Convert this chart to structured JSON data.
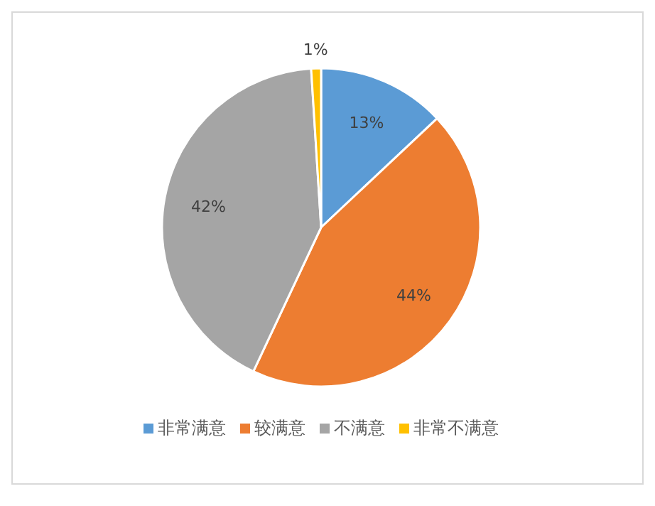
{
  "chart_data": {
    "type": "pie",
    "categories": [
      "非常满意",
      "较满意",
      "不满意",
      "非常不满意"
    ],
    "values": [
      13,
      44,
      42,
      1
    ],
    "colors": [
      "#5b9bd5",
      "#ed7d31",
      "#a5a5a5",
      "#ffc000"
    ],
    "value_labels": [
      "13%",
      "44%",
      "42%",
      "1%"
    ],
    "legend": "bottom"
  }
}
